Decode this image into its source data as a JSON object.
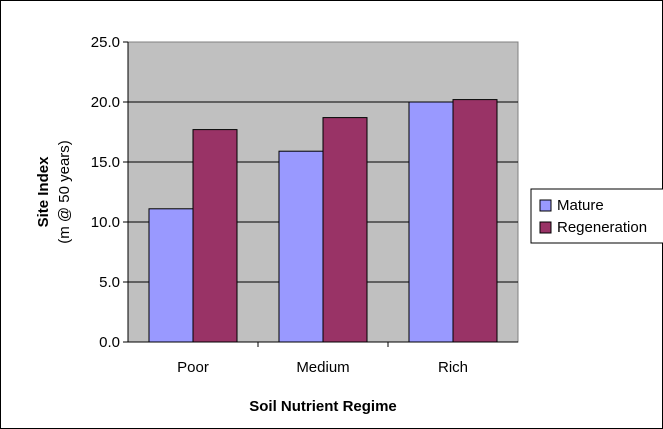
{
  "chart_data": {
    "type": "bar",
    "categories": [
      "Poor",
      "Medium",
      "Rich"
    ],
    "series": [
      {
        "name": "Mature",
        "values": [
          11.1,
          15.9,
          20.0
        ],
        "color": "#9999ff"
      },
      {
        "name": "Regeneration",
        "values": [
          17.7,
          18.7,
          20.2
        ],
        "color": "#993366"
      }
    ],
    "xlabel": "Soil Nutrient Regime",
    "ylabel": "Site Index",
    "ylabel_sub": "(m @ 50 years)",
    "ylim": [
      0,
      25
    ],
    "yticks": [
      "0.0",
      "5.0",
      "10.0",
      "15.0",
      "20.0",
      "25.0"
    ],
    "plot_background": "#c0c0c0",
    "grid": true,
    "legend_position": "right"
  }
}
